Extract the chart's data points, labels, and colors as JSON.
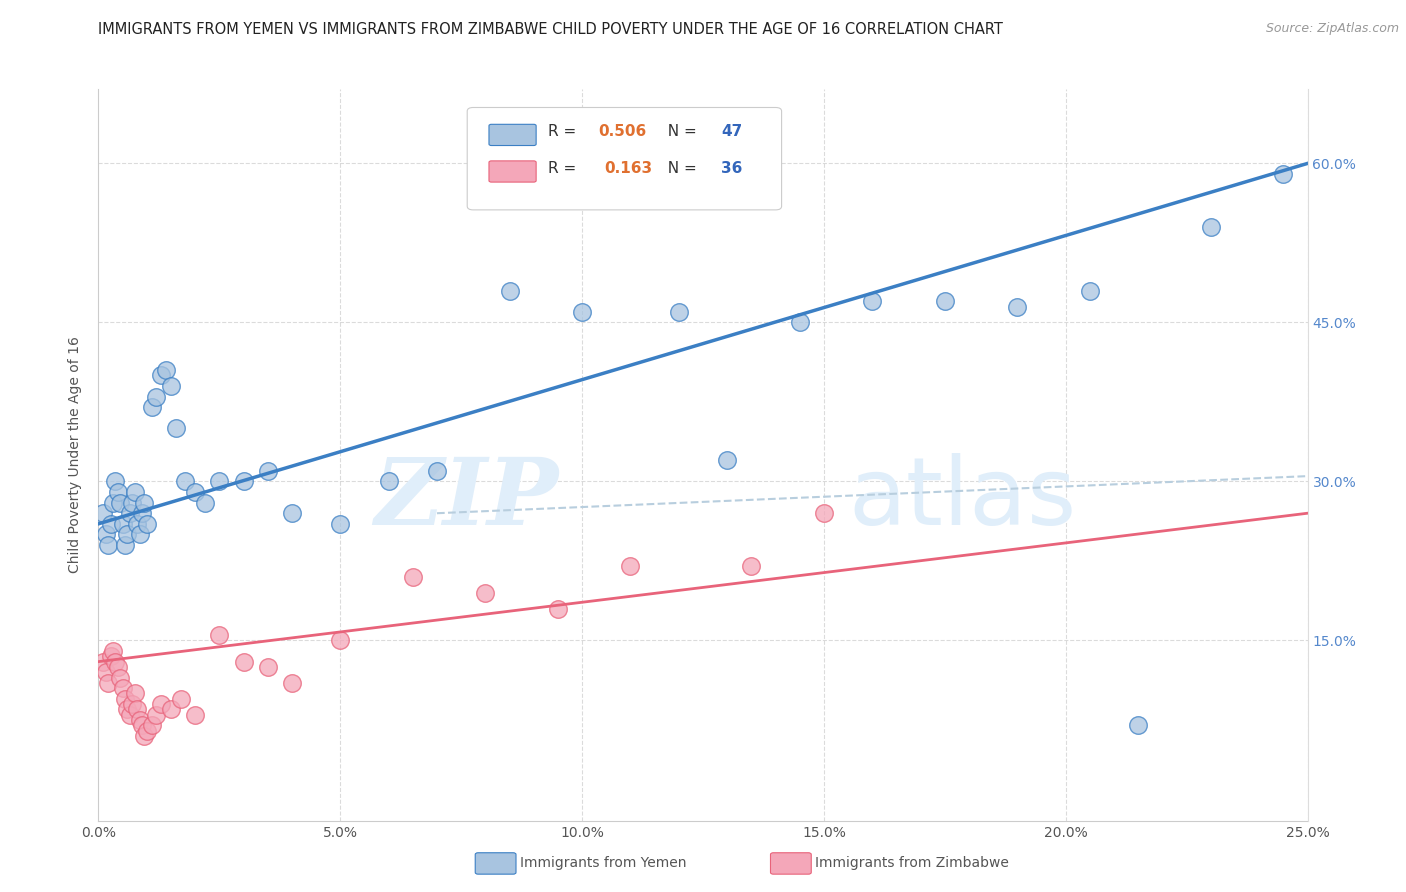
{
  "title": "IMMIGRANTS FROM YEMEN VS IMMIGRANTS FROM ZIMBABWE CHILD POVERTY UNDER THE AGE OF 16 CORRELATION CHART",
  "source": "Source: ZipAtlas.com",
  "ylabel": "Child Poverty Under the Age of 16",
  "x_tick_values": [
    0.0,
    5.0,
    10.0,
    15.0,
    20.0,
    25.0
  ],
  "y_tick_values": [
    15.0,
    30.0,
    45.0,
    60.0
  ],
  "xlim": [
    0.0,
    25.0
  ],
  "ylim": [
    -2.0,
    67.0
  ],
  "legend_yemen": "Immigrants from Yemen",
  "legend_zimbabwe": "Immigrants from Zimbabwe",
  "r_yemen": "0.506",
  "n_yemen": "47",
  "r_zimbabwe": "0.163",
  "n_zimbabwe": "36",
  "yemen_color": "#A8C4E0",
  "zimbabwe_color": "#F4A7B9",
  "trend_yemen_color": "#3B7FC4",
  "trend_zimbabwe_color": "#E8637A",
  "dashed_line_color": "#B8CEDE",
  "background_color": "#FFFFFF",
  "watermark_color": "#E0EEFA",
  "yemen_x": [
    0.1,
    0.15,
    0.2,
    0.25,
    0.3,
    0.35,
    0.4,
    0.45,
    0.5,
    0.55,
    0.6,
    0.65,
    0.7,
    0.75,
    0.8,
    0.85,
    0.9,
    0.95,
    1.0,
    1.1,
    1.2,
    1.3,
    1.4,
    1.5,
    1.6,
    1.8,
    2.0,
    2.2,
    2.5,
    3.0,
    3.5,
    4.0,
    5.0,
    6.0,
    7.0,
    8.5,
    10.0,
    12.0,
    13.0,
    14.5,
    16.0,
    17.5,
    19.0,
    20.5,
    21.5,
    23.0,
    24.5
  ],
  "yemen_y": [
    27.0,
    25.0,
    24.0,
    26.0,
    28.0,
    30.0,
    29.0,
    28.0,
    26.0,
    24.0,
    25.0,
    27.0,
    28.0,
    29.0,
    26.0,
    25.0,
    27.0,
    28.0,
    26.0,
    37.0,
    38.0,
    40.0,
    40.5,
    39.0,
    35.0,
    30.0,
    29.0,
    28.0,
    30.0,
    30.0,
    31.0,
    27.0,
    26.0,
    30.0,
    31.0,
    48.0,
    46.0,
    46.0,
    32.0,
    45.0,
    47.0,
    47.0,
    46.5,
    48.0,
    7.0,
    54.0,
    59.0
  ],
  "zimbabwe_x": [
    0.1,
    0.15,
    0.2,
    0.25,
    0.3,
    0.35,
    0.4,
    0.45,
    0.5,
    0.55,
    0.6,
    0.65,
    0.7,
    0.75,
    0.8,
    0.85,
    0.9,
    0.95,
    1.0,
    1.1,
    1.2,
    1.3,
    1.5,
    1.7,
    2.0,
    2.5,
    3.0,
    3.5,
    4.0,
    5.0,
    6.5,
    8.0,
    9.5,
    11.0,
    13.5,
    15.0
  ],
  "zimbabwe_y": [
    13.0,
    12.0,
    11.0,
    13.5,
    14.0,
    13.0,
    12.5,
    11.5,
    10.5,
    9.5,
    8.5,
    8.0,
    9.0,
    10.0,
    8.5,
    7.5,
    7.0,
    6.0,
    6.5,
    7.0,
    8.0,
    9.0,
    8.5,
    9.5,
    8.0,
    15.5,
    13.0,
    12.5,
    11.0,
    15.0,
    21.0,
    19.5,
    18.0,
    22.0,
    22.0,
    27.0
  ],
  "grid_color": "#CCCCCC",
  "grid_alpha": 0.7
}
